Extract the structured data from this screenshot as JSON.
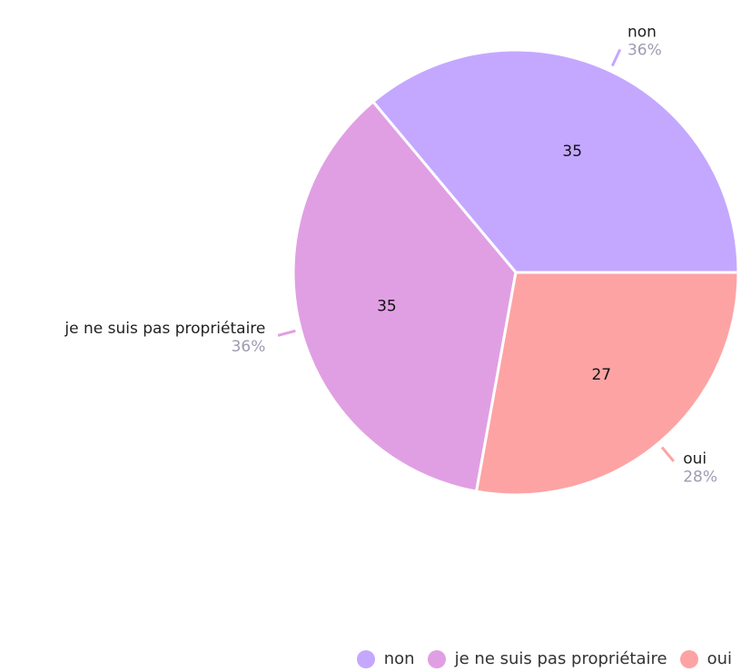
{
  "chart_data": {
    "type": "pie",
    "categories": [
      "non",
      "je ne suis pas propriétaire",
      "oui"
    ],
    "values": [
      35,
      35,
      27
    ],
    "percent_labels": [
      "36%",
      "36%",
      "28%"
    ],
    "colors": [
      "#c4a8ff",
      "#e09fe3",
      "#fda3a3"
    ],
    "legend": "bottom-right"
  }
}
